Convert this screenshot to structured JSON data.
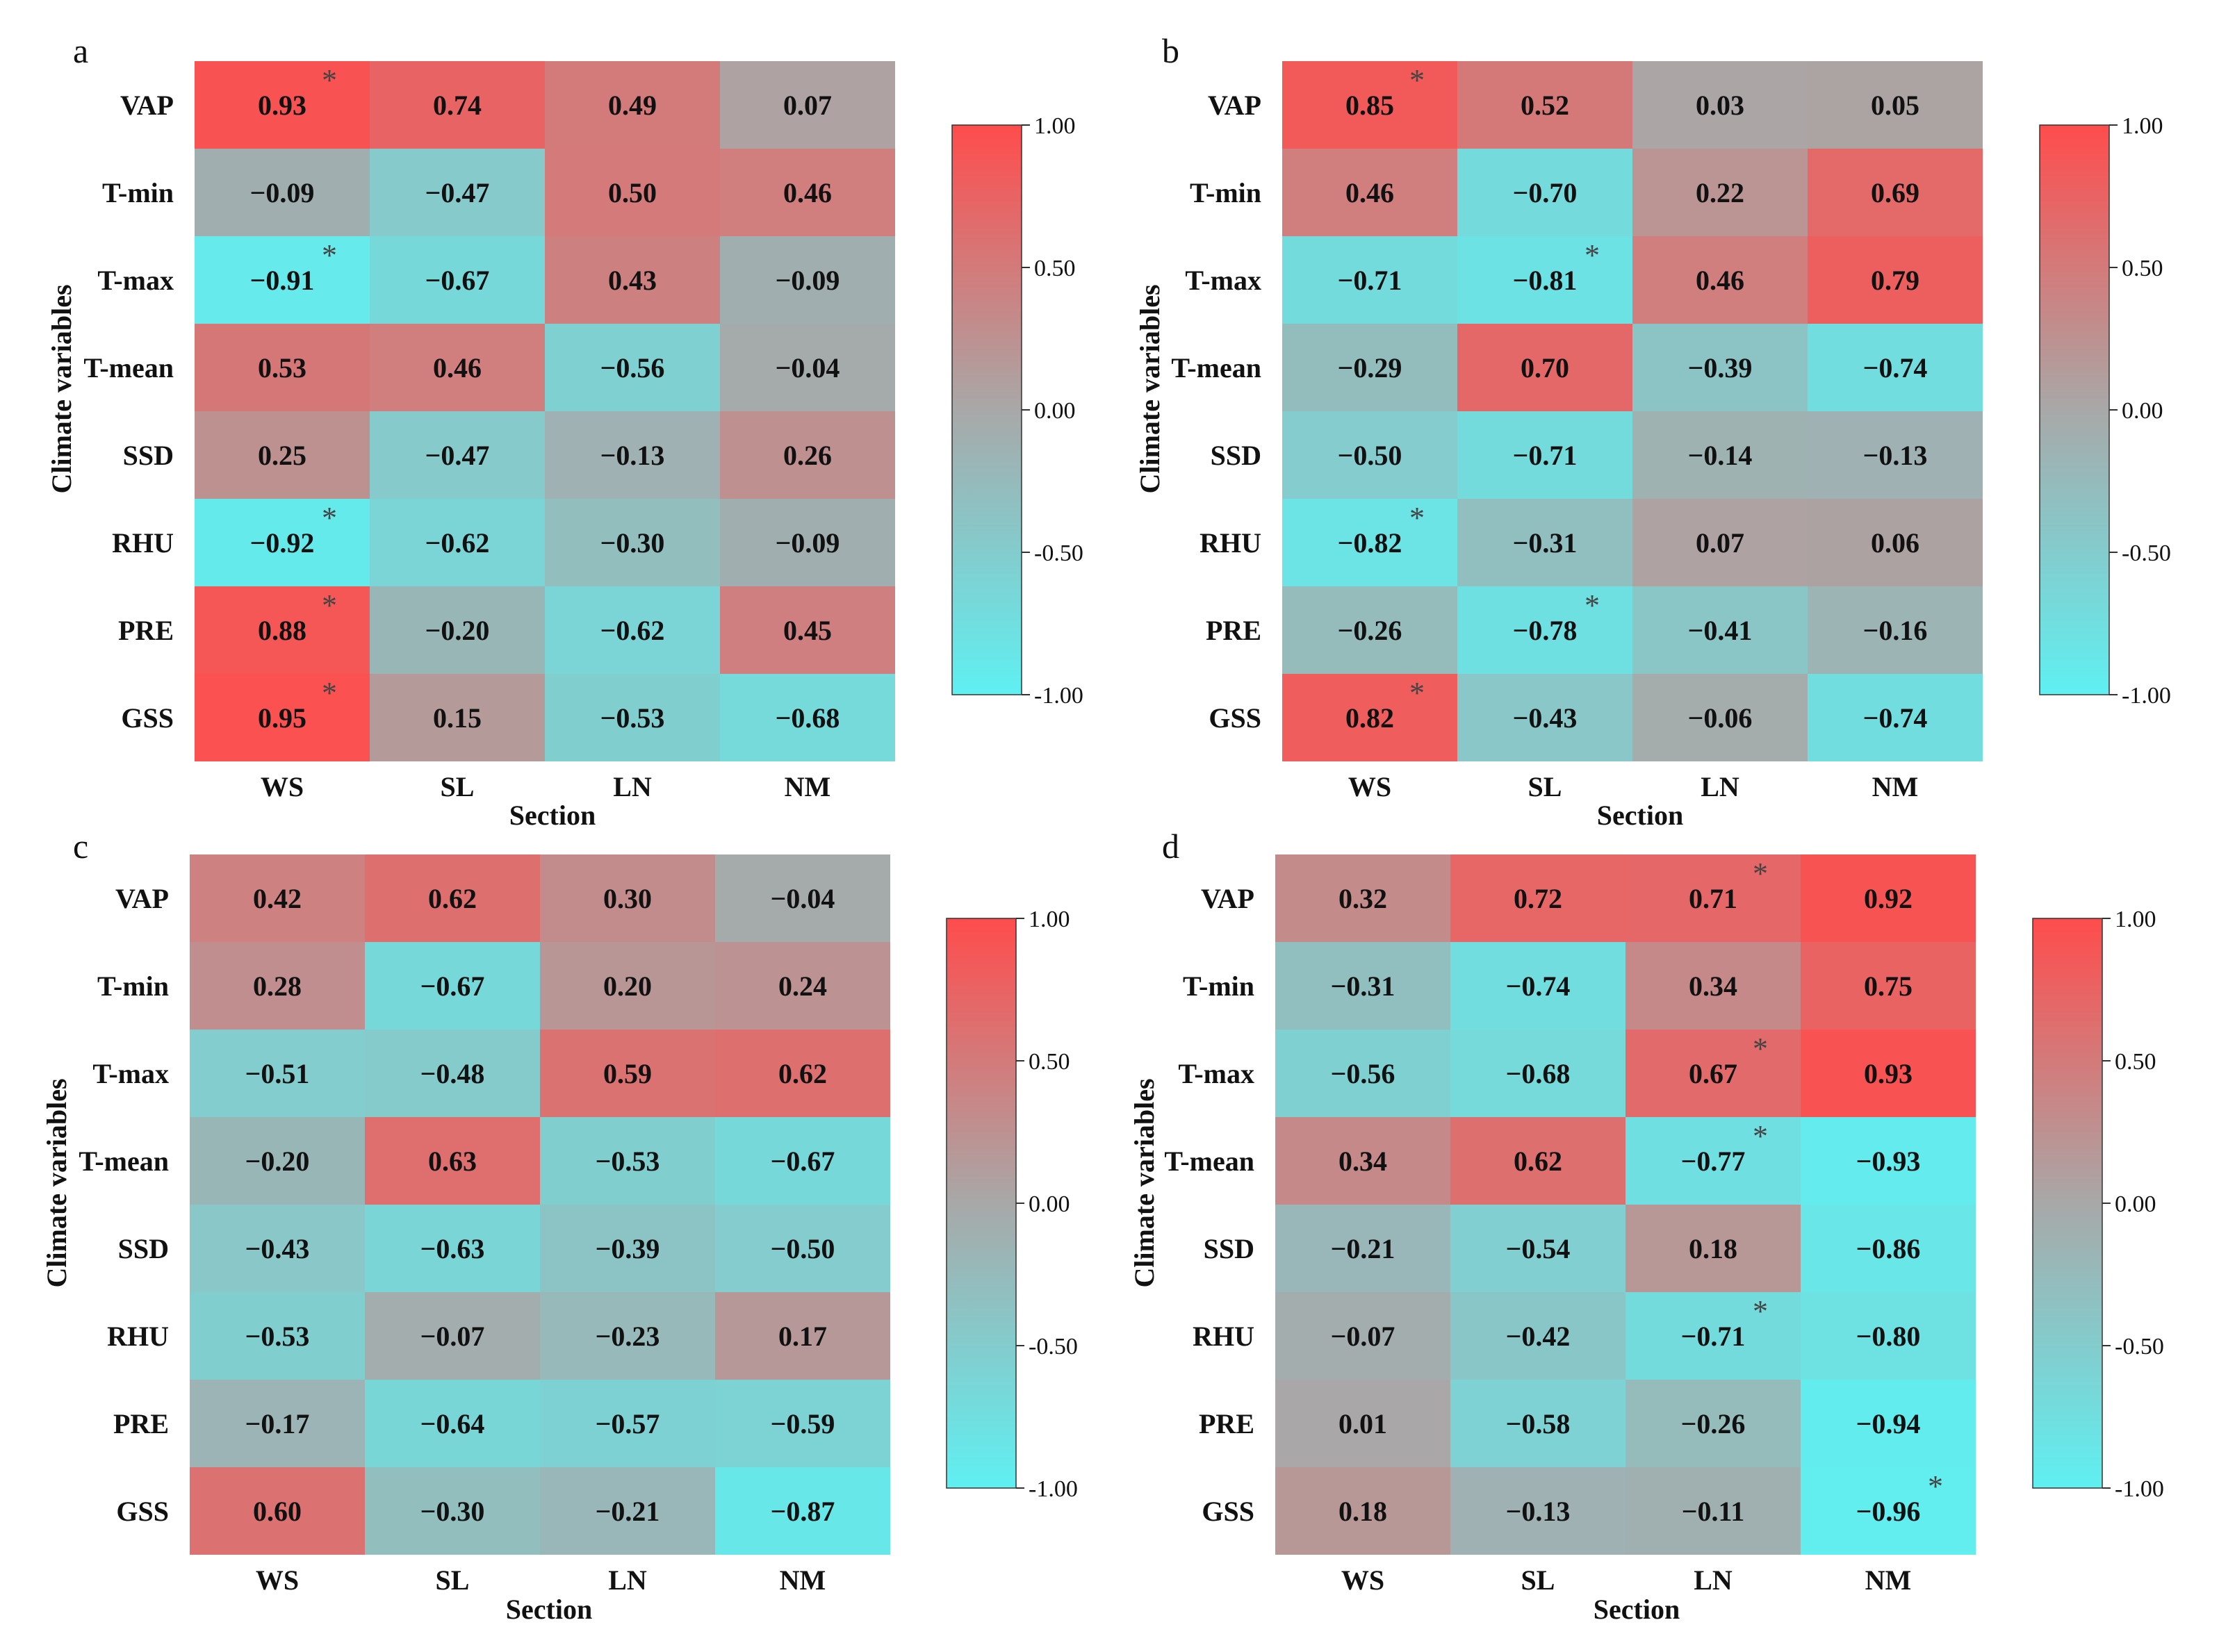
{
  "colorscale": {
    "low": "#5ff0f2",
    "mid": "#a8a8a8",
    "high": "#ff4c4c",
    "min": -1,
    "max": 1
  },
  "chart_data": [
    {
      "type": "heatmap",
      "panel_label": "a",
      "xlabel": "Section",
      "ylabel": "Climate variables",
      "columns": [
        "WS",
        "SL",
        "LN",
        "NM"
      ],
      "rows": [
        "VAP",
        "T-min",
        "T-max",
        "T-mean",
        "SSD",
        "RHU",
        "PRE",
        "GSS"
      ],
      "values": [
        [
          0.93,
          0.74,
          0.49,
          0.07
        ],
        [
          -0.09,
          -0.47,
          0.5,
          0.46
        ],
        [
          -0.91,
          -0.67,
          0.43,
          -0.09
        ],
        [
          0.53,
          0.46,
          -0.56,
          -0.04
        ],
        [
          0.25,
          -0.47,
          -0.13,
          0.26
        ],
        [
          -0.92,
          -0.62,
          -0.3,
          -0.09
        ],
        [
          0.88,
          -0.2,
          -0.62,
          0.45
        ],
        [
          0.95,
          0.15,
          -0.53,
          -0.68
        ]
      ],
      "labels": [
        [
          "0.93",
          "0.74",
          "0.49",
          "0.07"
        ],
        [
          "−0.09",
          "−0.47",
          "0.50",
          "0.46"
        ],
        [
          "−0.91",
          "−0.67",
          "0.43",
          "−0.09"
        ],
        [
          "0.53",
          "0.46",
          "−0.56",
          "−0.04"
        ],
        [
          "0.25",
          "−0.47",
          "−0.13",
          "0.26"
        ],
        [
          "−0.92",
          "−0.62",
          "−0.30",
          "−0.09"
        ],
        [
          "0.88",
          "−0.20",
          "−0.62",
          "0.45"
        ],
        [
          "0.95",
          "0.15",
          "−0.53",
          "−0.68"
        ]
      ],
      "significant": [
        [
          0,
          0
        ],
        [
          2,
          0
        ],
        [
          5,
          0
        ],
        [
          6,
          0
        ],
        [
          7,
          0
        ]
      ],
      "colorbar_ticks": [
        "1.00",
        "0.50",
        "0.00",
        "-0.50",
        "-1.00"
      ]
    },
    {
      "type": "heatmap",
      "panel_label": "b",
      "xlabel": "Section",
      "ylabel": "Climate variables",
      "columns": [
        "WS",
        "SL",
        "LN",
        "NM"
      ],
      "rows": [
        "VAP",
        "T-min",
        "T-max",
        "T-mean",
        "SSD",
        "RHU",
        "PRE",
        "GSS"
      ],
      "values": [
        [
          0.85,
          0.52,
          0.03,
          0.05
        ],
        [
          0.46,
          -0.7,
          0.22,
          0.69
        ],
        [
          -0.71,
          -0.81,
          0.46,
          0.79
        ],
        [
          -0.29,
          0.7,
          -0.39,
          -0.74
        ],
        [
          -0.5,
          -0.71,
          -0.14,
          -0.13
        ],
        [
          -0.82,
          -0.31,
          0.07,
          0.06
        ],
        [
          -0.26,
          -0.78,
          -0.41,
          -0.16
        ],
        [
          0.82,
          -0.43,
          -0.06,
          -0.74
        ]
      ],
      "labels": [
        [
          "0.85",
          "0.52",
          "0.03",
          "0.05"
        ],
        [
          "0.46",
          "−0.70",
          "0.22",
          "0.69"
        ],
        [
          "−0.71",
          "−0.81",
          "0.46",
          "0.79"
        ],
        [
          "−0.29",
          "0.70",
          "−0.39",
          "−0.74"
        ],
        [
          "−0.50",
          "−0.71",
          "−0.14",
          "−0.13"
        ],
        [
          "−0.82",
          "−0.31",
          "0.07",
          "0.06"
        ],
        [
          "−0.26",
          "−0.78",
          "−0.41",
          "−0.16"
        ],
        [
          "0.82",
          "−0.43",
          "−0.06",
          "−0.74"
        ]
      ],
      "significant": [
        [
          0,
          0
        ],
        [
          2,
          1
        ],
        [
          5,
          0
        ],
        [
          6,
          1
        ],
        [
          7,
          0
        ]
      ],
      "colorbar_ticks": [
        "1.00",
        "0.50",
        "0.00",
        "-0.50",
        "-1.00"
      ]
    },
    {
      "type": "heatmap",
      "panel_label": "c",
      "xlabel": "Section",
      "ylabel": "Climate variables",
      "columns": [
        "WS",
        "SL",
        "LN",
        "NM"
      ],
      "rows": [
        "VAP",
        "T-min",
        "T-max",
        "T-mean",
        "SSD",
        "RHU",
        "PRE",
        "GSS"
      ],
      "values": [
        [
          0.42,
          0.62,
          0.3,
          -0.04
        ],
        [
          0.28,
          -0.67,
          0.2,
          0.24
        ],
        [
          -0.51,
          -0.48,
          0.59,
          0.62
        ],
        [
          -0.2,
          0.63,
          -0.53,
          -0.67
        ],
        [
          -0.43,
          -0.63,
          -0.39,
          -0.5
        ],
        [
          -0.53,
          -0.07,
          -0.23,
          0.17
        ],
        [
          -0.17,
          -0.64,
          -0.57,
          -0.59
        ],
        [
          0.6,
          -0.3,
          -0.21,
          -0.87
        ]
      ],
      "labels": [
        [
          "0.42",
          "0.62",
          "0.30",
          "−0.04"
        ],
        [
          "0.28",
          "−0.67",
          "0.20",
          "0.24"
        ],
        [
          "−0.51",
          "−0.48",
          "0.59",
          "0.62"
        ],
        [
          "−0.20",
          "0.63",
          "−0.53",
          "−0.67"
        ],
        [
          "−0.43",
          "−0.63",
          "−0.39",
          "−0.50"
        ],
        [
          "−0.53",
          "−0.07",
          "−0.23",
          "0.17"
        ],
        [
          "−0.17",
          "−0.64",
          "−0.57",
          "−0.59"
        ],
        [
          "0.60",
          "−0.30",
          "−0.21",
          "−0.87"
        ]
      ],
      "significant": [],
      "colorbar_ticks": [
        "1.00",
        "0.50",
        "0.00",
        "-0.50",
        "-1.00"
      ]
    },
    {
      "type": "heatmap",
      "panel_label": "d",
      "xlabel": "Section",
      "ylabel": "Climate variables",
      "columns": [
        "WS",
        "SL",
        "LN",
        "NM"
      ],
      "rows": [
        "VAP",
        "T-min",
        "T-max",
        "T-mean",
        "SSD",
        "RHU",
        "PRE",
        "GSS"
      ],
      "values": [
        [
          0.32,
          0.72,
          0.71,
          0.92
        ],
        [
          -0.31,
          -0.74,
          0.34,
          0.75
        ],
        [
          -0.56,
          -0.68,
          0.67,
          0.93
        ],
        [
          0.34,
          0.62,
          -0.77,
          -0.93
        ],
        [
          -0.21,
          -0.54,
          0.18,
          -0.86
        ],
        [
          -0.07,
          -0.42,
          -0.71,
          -0.8
        ],
        [
          0.01,
          -0.58,
          -0.26,
          -0.94
        ],
        [
          0.18,
          -0.13,
          -0.11,
          -0.96
        ]
      ],
      "labels": [
        [
          "0.32",
          "0.72",
          "0.71",
          "0.92"
        ],
        [
          "−0.31",
          "−0.74",
          "0.34",
          "0.75"
        ],
        [
          "−0.56",
          "−0.68",
          "0.67",
          "0.93"
        ],
        [
          "0.34",
          "0.62",
          "−0.77",
          "−0.93"
        ],
        [
          "−0.21",
          "−0.54",
          "0.18",
          "−0.86"
        ],
        [
          "−0.07",
          "−0.42",
          "−0.71",
          "−0.80"
        ],
        [
          "0.01",
          "−0.58",
          "−0.26",
          "−0.94"
        ],
        [
          "0.18",
          "−0.13",
          "−0.11",
          "−0.96"
        ]
      ],
      "significant": [
        [
          0,
          2
        ],
        [
          2,
          2
        ],
        [
          3,
          2
        ],
        [
          5,
          2
        ],
        [
          7,
          3
        ]
      ],
      "colorbar_ticks": [
        "1.00",
        "0.50",
        "0.00",
        "-0.50",
        "-1.00"
      ]
    }
  ]
}
